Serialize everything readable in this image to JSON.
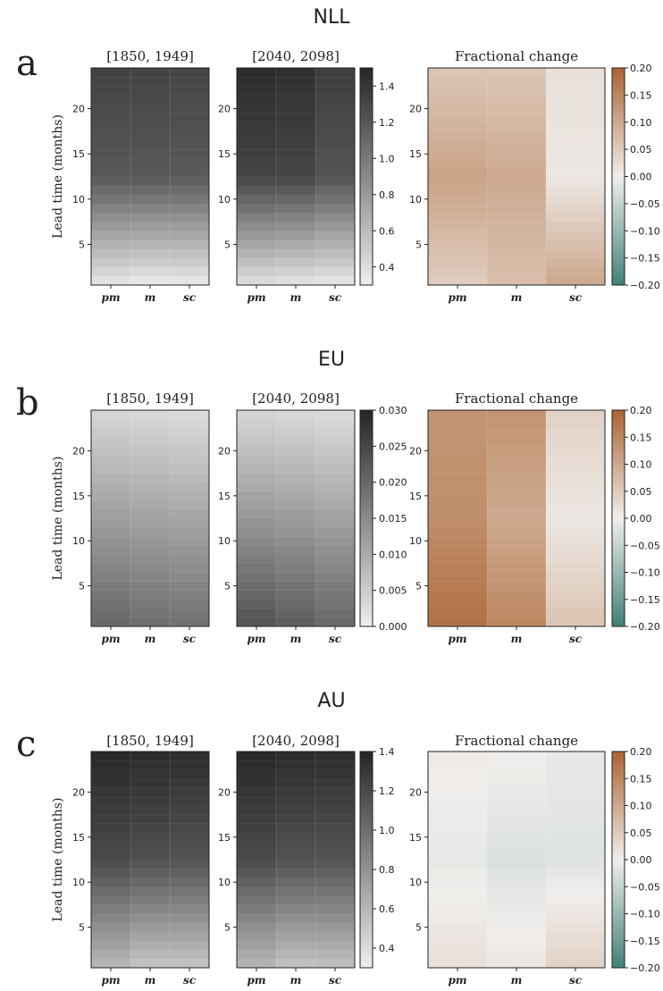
{
  "figure": {
    "xtick_labels": [
      "pm",
      "m",
      "sc"
    ],
    "ylabel": "Lead time (months)",
    "y_ticks": [
      5,
      10,
      15,
      20
    ],
    "lead_time_range": [
      1,
      24
    ]
  },
  "chart_data": [
    {
      "panel": "a",
      "region": "NLL",
      "type": "heatmap",
      "subplots": [
        {
          "title": "[1850, 1949]",
          "colorbar": "grey",
          "columns": [
            {
              "name": "pm",
              "start": 0.38,
              "mid": 1.2,
              "end": 1.33
            },
            {
              "name": "m",
              "start": 0.35,
              "mid": 1.2,
              "end": 1.32
            },
            {
              "name": "sc",
              "start": 0.36,
              "mid": 1.19,
              "end": 1.31
            }
          ]
        },
        {
          "title": "[2040, 2098]",
          "colorbar": "grey",
          "columns": [
            {
              "name": "pm",
              "start": 0.42,
              "mid": 1.32,
              "end": 1.46
            },
            {
              "name": "m",
              "start": 0.39,
              "mid": 1.31,
              "end": 1.44
            },
            {
              "name": "sc",
              "start": 0.37,
              "mid": 1.23,
              "end": 1.35
            }
          ]
        },
        {
          "title": "Fractional change",
          "colorbar": "diverging",
          "columns": [
            {
              "name": "pm",
              "start": 0.05,
              "mid": 0.11,
              "end": 0.06
            },
            {
              "name": "m",
              "start": 0.07,
              "mid": 0.1,
              "end": 0.06
            },
            {
              "name": "sc",
              "start": 0.1,
              "mid": 0.01,
              "end": 0.02
            }
          ]
        }
      ],
      "grey_colorbar": {
        "min": 0.3,
        "max": 1.5,
        "ticks": [
          0.4,
          0.6,
          0.8,
          1.0,
          1.2,
          1.4
        ],
        "tick_labels": [
          "0.4",
          "0.6",
          "0.8",
          "1.0",
          "1.2",
          "1.4"
        ]
      },
      "div_colorbar": {
        "min": -0.2,
        "max": 0.2,
        "ticks": [
          -0.2,
          -0.15,
          -0.1,
          -0.05,
          0,
          0.05,
          0.1,
          0.15,
          0.2
        ],
        "tick_labels": [
          "−0.20",
          "−0.15",
          "−0.10",
          "−0.05",
          "0.00",
          "0.05",
          "0.10",
          "0.15",
          "0.20"
        ]
      }
    },
    {
      "panel": "b",
      "region": "EU",
      "type": "heatmap",
      "subplots": [
        {
          "title": "[1850, 1949]",
          "colorbar": "grey",
          "columns": [
            {
              "name": "pm",
              "start": 0.02,
              "mid": 0.012,
              "end": 0.004
            },
            {
              "name": "m",
              "start": 0.019,
              "mid": 0.0115,
              "end": 0.0035
            },
            {
              "name": "sc",
              "start": 0.0185,
              "mid": 0.011,
              "end": 0.003
            }
          ]
        },
        {
          "title": "[2040, 2098]",
          "colorbar": "grey",
          "columns": [
            {
              "name": "pm",
              "start": 0.023,
              "mid": 0.013,
              "end": 0.004
            },
            {
              "name": "m",
              "start": 0.0215,
              "mid": 0.0125,
              "end": 0.0035
            },
            {
              "name": "sc",
              "start": 0.02,
              "mid": 0.0115,
              "end": 0.003
            }
          ]
        },
        {
          "title": "Fractional change",
          "colorbar": "diverging",
          "columns": [
            {
              "name": "pm",
              "start": 0.18,
              "mid": 0.14,
              "end": 0.13
            },
            {
              "name": "m",
              "start": 0.15,
              "mid": 0.1,
              "end": 0.13
            },
            {
              "name": "sc",
              "start": 0.06,
              "mid": 0.01,
              "end": 0.04
            }
          ]
        }
      ],
      "grey_colorbar": {
        "min": 0.0,
        "max": 0.03,
        "ticks": [
          0,
          0.005,
          0.01,
          0.015,
          0.02,
          0.025,
          0.03
        ],
        "tick_labels": [
          "0.000",
          "0.005",
          "0.010",
          "0.015",
          "0.020",
          "0.025",
          "0.030"
        ]
      },
      "div_colorbar": {
        "min": -0.2,
        "max": 0.2,
        "ticks": [
          -0.2,
          -0.15,
          -0.1,
          -0.05,
          0,
          0.05,
          0.1,
          0.15,
          0.2
        ],
        "tick_labels": [
          "−0.20",
          "−0.15",
          "−0.10",
          "−0.05",
          "0.00",
          "0.05",
          "0.10",
          "0.15",
          "0.20"
        ]
      }
    },
    {
      "panel": "c",
      "region": "AU",
      "type": "heatmap",
      "subplots": [
        {
          "title": "[1850, 1949]",
          "colorbar": "grey",
          "columns": [
            {
              "name": "pm",
              "start": 0.62,
              "mid": 1.2,
              "end": 1.38
            },
            {
              "name": "m",
              "start": 0.55,
              "mid": 1.17,
              "end": 1.36
            },
            {
              "name": "sc",
              "start": 0.55,
              "mid": 1.15,
              "end": 1.35
            }
          ]
        },
        {
          "title": "[2040, 2098]",
          "colorbar": "grey",
          "columns": [
            {
              "name": "pm",
              "start": 0.63,
              "mid": 1.2,
              "end": 1.38
            },
            {
              "name": "m",
              "start": 0.56,
              "mid": 1.16,
              "end": 1.36
            },
            {
              "name": "sc",
              "start": 0.57,
              "mid": 1.15,
              "end": 1.35
            }
          ]
        },
        {
          "title": "Fractional change",
          "colorbar": "diverging",
          "columns": [
            {
              "name": "pm",
              "start": 0.02,
              "mid": -0.01,
              "end": 0.005
            },
            {
              "name": "m",
              "start": 0.01,
              "mid": -0.025,
              "end": 0.0
            },
            {
              "name": "sc",
              "start": 0.04,
              "mid": -0.02,
              "end": -0.01
            }
          ]
        }
      ],
      "grey_colorbar": {
        "min": 0.3,
        "max": 1.4,
        "ticks": [
          0.4,
          0.6,
          0.8,
          1.0,
          1.2,
          1.4
        ],
        "tick_labels": [
          "0.4",
          "0.6",
          "0.8",
          "1.0",
          "1.2",
          "1.4"
        ]
      },
      "div_colorbar": {
        "min": -0.2,
        "max": 0.2,
        "ticks": [
          -0.2,
          -0.15,
          -0.1,
          -0.05,
          0,
          0.05,
          0.1,
          0.15,
          0.2
        ],
        "tick_labels": [
          "−0.20",
          "−0.15",
          "−0.10",
          "−0.05",
          "0.00",
          "0.05",
          "0.10",
          "0.15",
          "0.20"
        ]
      }
    }
  ]
}
